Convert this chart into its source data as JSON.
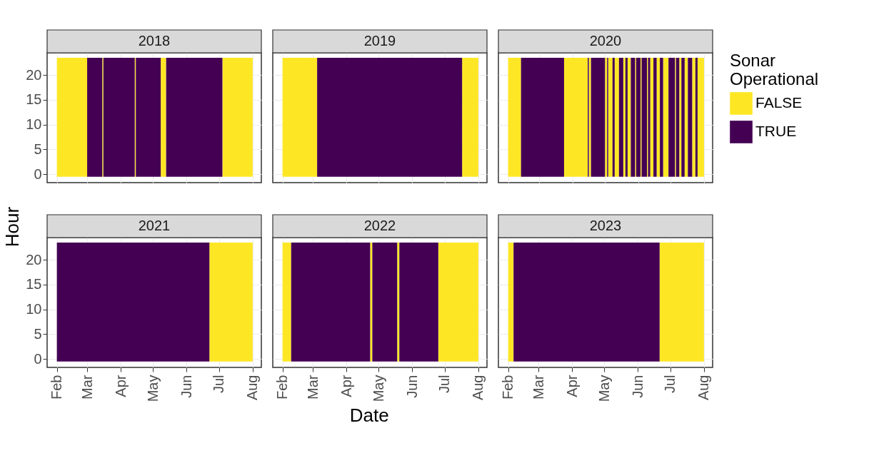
{
  "chart_data": [
    {
      "type": "histogram",
      "title": "2018",
      "xlabel": "Date",
      "ylabel": "Hour",
      "legend_title": "Sonar Operational",
      "legend": "right",
      "grid": true,
      "tick_labels": "y",
      "bins": [
        "2018-02-01",
        "2018-03-01",
        "2018-03-15",
        "2018-03-16",
        "2018-04-14",
        "2018-04-15",
        "2018-05-08",
        "2018-05-13",
        "2018-07-04",
        "2018-08-01"
      ],
      "series": [
        {
          "name": "FALSE",
          "color": "#fde725",
          "values": [
            24,
            null,
            24,
            null,
            24,
            null,
            24,
            null,
            24
          ],
          "base": [
            -0.5,
            null,
            -0.5,
            null,
            -0.5,
            null,
            -0.5,
            null,
            -0.5
          ]
        },
        {
          "name": "TRUE",
          "color": "#440154",
          "values": [
            null,
            24,
            null,
            24,
            null,
            24,
            null,
            24,
            null
          ],
          "base": [
            null,
            -0.5,
            null,
            -0.5,
            null,
            -0.5,
            null,
            -0.5,
            null
          ]
        }
      ],
      "xlim": [
        "2018-01-23",
        "2018-08-09"
      ],
      "xticks": [
        {
          "value": "2018-02-01",
          "label": "Feb"
        },
        {
          "value": "2018-03-01",
          "label": "Mar"
        },
        {
          "value": "2018-04-01",
          "label": "Apr"
        },
        {
          "value": "2018-05-01",
          "label": "May"
        },
        {
          "value": "2018-06-01",
          "label": "Jun"
        },
        {
          "value": "2018-07-01",
          "label": "Jul"
        },
        {
          "value": "2018-08-01",
          "label": "Aug"
        }
      ],
      "ylim": [
        -1.7,
        24.5
      ],
      "yticks": [
        0,
        5,
        10,
        15,
        20
      ]
    },
    {
      "type": "histogram",
      "title": "2019",
      "grid": true,
      "tick_labels": false,
      "bins": [
        "2019-02-01",
        "2019-03-05",
        "2019-07-17",
        "2019-08-01"
      ],
      "series": [
        {
          "name": "FALSE",
          "color": "#fde725",
          "values": [
            24,
            null,
            24
          ],
          "base": [
            -0.5,
            null,
            -0.5
          ]
        },
        {
          "name": "TRUE",
          "color": "#440154",
          "values": [
            null,
            24,
            null
          ],
          "base": [
            null,
            -0.5,
            null
          ]
        }
      ],
      "xlim": [
        "2019-01-23",
        "2019-08-09"
      ],
      "xticks": [
        {
          "value": "2019-02-01",
          "label": "Feb"
        },
        {
          "value": "2019-03-01",
          "label": "Mar"
        },
        {
          "value": "2019-04-01",
          "label": "Apr"
        },
        {
          "value": "2019-05-01",
          "label": "May"
        },
        {
          "value": "2019-06-01",
          "label": "Jun"
        },
        {
          "value": "2019-07-01",
          "label": "Jul"
        },
        {
          "value": "2019-08-01",
          "label": "Aug"
        }
      ],
      "ylim": [
        -1.7,
        24.5
      ],
      "yticks": [
        0,
        5,
        10,
        15,
        20
      ]
    },
    {
      "type": "histogram",
      "title": "2020",
      "grid": true,
      "tick_labels": false,
      "bins": [
        "2020-02-01",
        "2020-02-13",
        "2020-03-24",
        "2020-04-15",
        "2020-04-16",
        "2020-04-18",
        "2020-05-01",
        "2020-05-03",
        "2020-05-04",
        "2020-05-08",
        "2020-05-10",
        "2020-05-14",
        "2020-05-18",
        "2020-05-20",
        "2020-05-22",
        "2020-05-25",
        "2020-05-29",
        "2020-05-30",
        "2020-06-03",
        "2020-06-04",
        "2020-06-09",
        "2020-06-10",
        "2020-06-12",
        "2020-06-15",
        "2020-06-18",
        "2020-06-21",
        "2020-06-24",
        "2020-06-29",
        "2020-07-05",
        "2020-07-06",
        "2020-07-09",
        "2020-07-11",
        "2020-07-14",
        "2020-07-17",
        "2020-07-21",
        "2020-07-24",
        "2020-07-26",
        "2020-08-01"
      ],
      "series": [
        {
          "name": "FALSE",
          "color": "#fde725",
          "values": [
            24,
            null,
            24,
            null,
            24,
            null,
            24,
            null,
            24,
            null,
            24,
            null,
            24,
            null,
            24,
            null,
            24,
            null,
            24,
            null,
            24,
            null,
            24,
            null,
            24,
            null,
            24,
            null,
            24,
            null,
            24,
            null,
            24,
            null,
            24,
            null,
            24
          ],
          "base": [
            -0.5,
            null,
            -0.5,
            null,
            -0.5,
            null,
            -0.5,
            null,
            -0.5,
            null,
            -0.5,
            null,
            -0.5,
            null,
            -0.5,
            null,
            -0.5,
            null,
            -0.5,
            null,
            -0.5,
            null,
            -0.5,
            null,
            -0.5,
            null,
            -0.5,
            null,
            -0.5,
            null,
            -0.5,
            null,
            -0.5,
            null,
            -0.5,
            null,
            -0.5
          ]
        },
        {
          "name": "TRUE",
          "color": "#440154",
          "values": [
            null,
            24,
            null,
            24,
            null,
            24,
            null,
            24,
            null,
            24,
            null,
            24,
            null,
            24,
            null,
            24,
            null,
            24,
            null,
            24,
            null,
            24,
            null,
            24,
            null,
            24,
            null,
            24,
            null,
            24,
            null,
            24,
            null,
            24,
            null,
            24,
            null
          ],
          "base": [
            null,
            -0.5,
            null,
            -0.5,
            null,
            -0.5,
            null,
            -0.5,
            null,
            -0.5,
            null,
            -0.5,
            null,
            -0.5,
            null,
            -0.5,
            null,
            -0.5,
            null,
            -0.5,
            null,
            -0.5,
            null,
            -0.5,
            null,
            -0.5,
            null,
            -0.5,
            null,
            -0.5,
            null,
            -0.5,
            null,
            -0.5,
            null,
            -0.5,
            null
          ]
        }
      ],
      "xlim": [
        "2020-01-23",
        "2020-08-09"
      ],
      "xticks": [
        {
          "value": "2020-02-01",
          "label": "Feb"
        },
        {
          "value": "2020-03-01",
          "label": "Mar"
        },
        {
          "value": "2020-04-01",
          "label": "Apr"
        },
        {
          "value": "2020-05-01",
          "label": "May"
        },
        {
          "value": "2020-06-01",
          "label": "Jun"
        },
        {
          "value": "2020-07-01",
          "label": "Jul"
        },
        {
          "value": "2020-08-01",
          "label": "Aug"
        }
      ],
      "ylim": [
        -1.7,
        24.5
      ],
      "yticks": [
        0,
        5,
        10,
        15,
        20
      ]
    },
    {
      "type": "histogram",
      "title": "2021",
      "grid": true,
      "bins": [
        "2021-02-01",
        "2021-06-22",
        "2021-08-01"
      ],
      "series": [
        {
          "name": "FALSE",
          "color": "#fde725",
          "values": [
            null,
            24
          ],
          "base": [
            null,
            -0.5
          ]
        },
        {
          "name": "TRUE",
          "color": "#440154",
          "values": [
            24,
            null
          ],
          "base": [
            -0.5,
            null
          ]
        }
      ],
      "xlim": [
        "2021-01-23",
        "2021-08-09"
      ],
      "xticks": [
        {
          "value": "2021-02-01",
          "label": "Feb"
        },
        {
          "value": "2021-03-01",
          "label": "Mar"
        },
        {
          "value": "2021-04-01",
          "label": "Apr"
        },
        {
          "value": "2021-05-01",
          "label": "May"
        },
        {
          "value": "2021-06-01",
          "label": "Jun"
        },
        {
          "value": "2021-07-01",
          "label": "Jul"
        },
        {
          "value": "2021-08-01",
          "label": "Aug"
        }
      ],
      "ylim": [
        -1.7,
        24.5
      ],
      "yticks": [
        0,
        5,
        10,
        15,
        20
      ]
    },
    {
      "type": "histogram",
      "title": "2022",
      "grid": true,
      "tick_labels": "x",
      "bins": [
        "2022-02-01",
        "2022-02-09",
        "2022-04-23",
        "2022-04-25",
        "2022-05-18",
        "2022-05-20",
        "2022-06-25",
        "2022-08-01"
      ],
      "series": [
        {
          "name": "FALSE",
          "color": "#fde725",
          "values": [
            24,
            null,
            24,
            null,
            24,
            null,
            24
          ],
          "base": [
            -0.5,
            null,
            -0.5,
            null,
            -0.5,
            null,
            -0.5
          ]
        },
        {
          "name": "TRUE",
          "color": "#440154",
          "values": [
            null,
            24,
            null,
            24,
            null,
            24,
            null
          ],
          "base": [
            null,
            -0.5,
            null,
            -0.5,
            null,
            -0.5,
            null
          ]
        }
      ],
      "xlim": [
        "2022-01-23",
        "2022-08-09"
      ],
      "xticks": [
        {
          "value": "2022-02-01",
          "label": "Feb"
        },
        {
          "value": "2022-03-01",
          "label": "Mar"
        },
        {
          "value": "2022-04-01",
          "label": "Apr"
        },
        {
          "value": "2022-05-01",
          "label": "May"
        },
        {
          "value": "2022-06-01",
          "label": "Jun"
        },
        {
          "value": "2022-07-01",
          "label": "Jul"
        },
        {
          "value": "2022-08-01",
          "label": "Aug"
        }
      ],
      "ylim": [
        -1.7,
        24.5
      ],
      "yticks": [
        0,
        5,
        10,
        15,
        20
      ]
    },
    {
      "type": "histogram",
      "title": "2023",
      "grid": true,
      "tick_labels": "x",
      "bins": [
        "2023-02-01",
        "2023-02-06",
        "2023-06-21",
        "2023-08-01"
      ],
      "series": [
        {
          "name": "FALSE",
          "color": "#fde725",
          "values": [
            24,
            null,
            24
          ],
          "base": [
            -0.5,
            null,
            -0.5
          ]
        },
        {
          "name": "TRUE",
          "color": "#440154",
          "values": [
            null,
            24,
            null
          ],
          "base": [
            null,
            -0.5,
            null
          ]
        }
      ],
      "xlim": [
        "2023-01-23",
        "2023-08-09"
      ],
      "xticks": [
        {
          "value": "2023-02-01",
          "label": "Feb"
        },
        {
          "value": "2023-03-01",
          "label": "Mar"
        },
        {
          "value": "2023-04-01",
          "label": "Apr"
        },
        {
          "value": "2023-05-01",
          "label": "May"
        },
        {
          "value": "2023-06-01",
          "label": "Jun"
        },
        {
          "value": "2023-07-01",
          "label": "Jul"
        },
        {
          "value": "2023-08-01",
          "label": "Aug"
        }
      ],
      "ylim": [
        -1.7,
        24.5
      ],
      "yticks": [
        0,
        5,
        10,
        15,
        20
      ]
    }
  ]
}
